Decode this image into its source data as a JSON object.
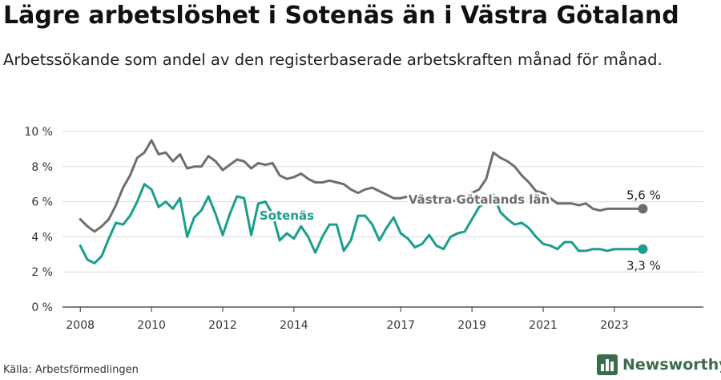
{
  "title": "Lägre arbetslöshet i Sotenäs än i Västra Götaland",
  "subtitle": "Arbetssökande som andel av den registerbaserade arbetskraften månad för månad.",
  "source": "Källa: Arbetsförmedlingen",
  "brand": {
    "name": "Newsworthy",
    "icon": "bar-chart-logo-icon",
    "color": "#3d6b4e"
  },
  "chart_data": {
    "type": "line",
    "title": "Lägre arbetslöshet i Sotenäs än i Västra Götaland",
    "xlabel": "",
    "ylabel": "",
    "ylim": [
      0,
      10
    ],
    "xlim": [
      2007.5,
      2025.5
    ],
    "grid": true,
    "y_ticks": [
      0,
      2,
      4,
      6,
      8,
      10
    ],
    "y_tick_labels": [
      "0 %",
      "2 %",
      "4 %",
      "6 %",
      "8 %",
      "10 %"
    ],
    "x_ticks": [
      2008,
      2010,
      2012,
      2014,
      2017,
      2019,
      2021,
      2023
    ],
    "x_tick_labels": [
      "2008",
      "2010",
      "2012",
      "2014",
      "2017",
      "2019",
      "2021",
      "2023"
    ],
    "series": [
      {
        "name": "Västra Götalands län",
        "color": "#6e6e6e",
        "end_label": "5,6 %",
        "x": [
          2008.0,
          2008.2,
          2008.4,
          2008.6,
          2008.8,
          2009.0,
          2009.2,
          2009.4,
          2009.6,
          2009.8,
          2010.0,
          2010.2,
          2010.4,
          2010.6,
          2010.8,
          2011.0,
          2011.2,
          2011.4,
          2011.6,
          2011.8,
          2012.0,
          2012.2,
          2012.4,
          2012.6,
          2012.8,
          2013.0,
          2013.2,
          2013.4,
          2013.6,
          2013.8,
          2014.0,
          2014.2,
          2014.4,
          2014.6,
          2014.8,
          2015.0,
          2015.2,
          2015.4,
          2015.6,
          2015.8,
          2016.0,
          2016.2,
          2016.4,
          2016.6,
          2016.8,
          2017.0,
          2017.2,
          2017.4,
          2017.6,
          2017.8,
          2018.0,
          2018.2,
          2018.4,
          2018.6,
          2018.8,
          2019.0,
          2019.2,
          2019.4,
          2019.6,
          2019.8,
          2020.0,
          2020.2,
          2020.4,
          2020.6,
          2020.8,
          2021.0,
          2021.2,
          2021.4,
          2021.6,
          2021.8,
          2022.0,
          2022.2,
          2022.4,
          2022.6,
          2022.8,
          2023.0,
          2023.2,
          2023.4,
          2023.6,
          2023.8
        ],
        "values": [
          5.0,
          4.6,
          4.3,
          4.6,
          5.0,
          5.8,
          6.8,
          7.5,
          8.5,
          8.8,
          9.5,
          8.7,
          8.8,
          8.3,
          8.7,
          7.9,
          8.0,
          8.0,
          8.6,
          8.3,
          7.8,
          8.1,
          8.4,
          8.3,
          7.9,
          8.2,
          8.1,
          8.2,
          7.5,
          7.3,
          7.4,
          7.6,
          7.3,
          7.1,
          7.1,
          7.2,
          7.1,
          7.0,
          6.7,
          6.5,
          6.7,
          6.8,
          6.6,
          6.4,
          6.2,
          6.2,
          6.3,
          6.1,
          6.0,
          5.9,
          5.9,
          6.0,
          6.0,
          6.1,
          6.3,
          6.5,
          6.7,
          7.3,
          8.8,
          8.5,
          8.3,
          8.0,
          7.5,
          7.1,
          6.6,
          6.5,
          6.2,
          5.9,
          5.9,
          5.9,
          5.8,
          5.9,
          5.6,
          5.5,
          5.6,
          5.6,
          5.6,
          5.6,
          5.6,
          5.6
        ]
      },
      {
        "name": "Sotenäs",
        "color": "#1a9e8c",
        "end_label": "3,3 %",
        "x": [
          2008.0,
          2008.2,
          2008.4,
          2008.6,
          2008.8,
          2009.0,
          2009.2,
          2009.4,
          2009.6,
          2009.8,
          2010.0,
          2010.2,
          2010.4,
          2010.6,
          2010.8,
          2011.0,
          2011.2,
          2011.4,
          2011.6,
          2011.8,
          2012.0,
          2012.2,
          2012.4,
          2012.6,
          2012.8,
          2013.0,
          2013.2,
          2013.4,
          2013.6,
          2013.8,
          2014.0,
          2014.2,
          2014.4,
          2014.6,
          2014.8,
          2015.0,
          2015.2,
          2015.4,
          2015.6,
          2015.8,
          2016.0,
          2016.2,
          2016.4,
          2016.6,
          2016.8,
          2017.0,
          2017.2,
          2017.4,
          2017.6,
          2017.8,
          2018.0,
          2018.2,
          2018.4,
          2018.6,
          2018.8,
          2019.0,
          2019.2,
          2019.4,
          2019.6,
          2019.8,
          2020.0,
          2020.2,
          2020.4,
          2020.6,
          2020.8,
          2021.0,
          2021.2,
          2021.4,
          2021.6,
          2021.8,
          2022.0,
          2022.2,
          2022.4,
          2022.6,
          2022.8,
          2023.0,
          2023.2,
          2023.4,
          2023.6,
          2023.8
        ],
        "values": [
          3.5,
          2.7,
          2.5,
          2.9,
          3.9,
          4.8,
          4.7,
          5.2,
          6.0,
          7.0,
          6.7,
          5.7,
          6.0,
          5.6,
          6.2,
          4.0,
          5.1,
          5.5,
          6.3,
          5.3,
          4.1,
          5.3,
          6.3,
          6.2,
          4.1,
          5.9,
          6.0,
          5.3,
          3.8,
          4.2,
          3.9,
          4.6,
          4.0,
          3.1,
          4.0,
          4.7,
          4.7,
          3.2,
          3.8,
          5.2,
          5.2,
          4.7,
          3.8,
          4.5,
          5.1,
          4.2,
          3.9,
          3.4,
          3.6,
          4.1,
          3.5,
          3.3,
          4.0,
          4.2,
          4.3,
          5.0,
          5.7,
          6.0,
          6.4,
          5.4,
          5.0,
          4.7,
          4.8,
          4.5,
          4.0,
          3.6,
          3.5,
          3.3,
          3.7,
          3.7,
          3.2,
          3.2,
          3.3,
          3.3,
          3.2,
          3.3,
          3.3,
          3.3,
          3.3,
          3.3
        ]
      }
    ],
    "annotations": [
      {
        "text": "Västra Götalands län",
        "series": "Västra Götalands län"
      },
      {
        "text": "Sotenäs",
        "series": "Sotenäs"
      }
    ]
  }
}
